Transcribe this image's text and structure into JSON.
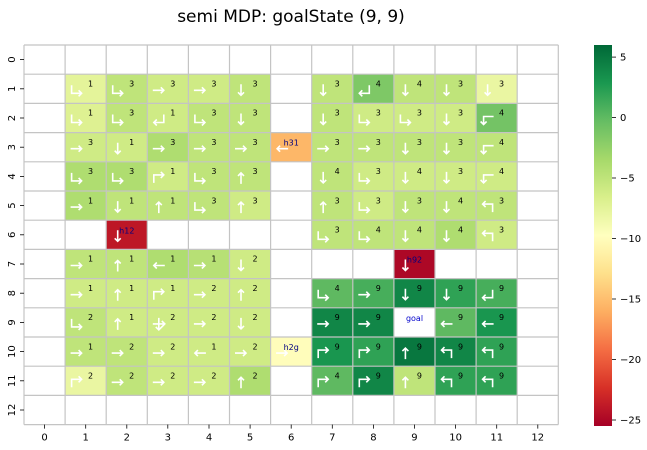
{
  "chart_data": {
    "type": "heatmap",
    "title": "semi MDP: goalState (9, 9)",
    "xlabel": "",
    "ylabel": "",
    "x_ticks": [
      "0",
      "1",
      "2",
      "3",
      "4",
      "5",
      "6",
      "7",
      "8",
      "9",
      "10",
      "11",
      "12"
    ],
    "y_ticks": [
      "0",
      "1",
      "2",
      "3",
      "4",
      "5",
      "6",
      "7",
      "8",
      "9",
      "10",
      "11",
      "12"
    ],
    "colorscale": "RdYlGn",
    "vmin": -25.5,
    "vmax": 6,
    "colorbar_ticks": [
      5,
      0,
      -5,
      -10,
      -15,
      -20,
      -25
    ],
    "cells": [
      {
        "row": 1,
        "col": 1,
        "value": -7.5,
        "label": "1",
        "arrow": "down-right"
      },
      {
        "row": 1,
        "col": 2,
        "value": -5,
        "label": "3",
        "arrow": "down-right"
      },
      {
        "row": 1,
        "col": 3,
        "value": -6,
        "label": "3",
        "arrow": "right"
      },
      {
        "row": 1,
        "col": 4,
        "value": -6,
        "label": "3",
        "arrow": "right"
      },
      {
        "row": 1,
        "col": 5,
        "value": -5,
        "label": "3",
        "arrow": "down"
      },
      {
        "row": 1,
        "col": 7,
        "value": -5,
        "label": "3",
        "arrow": "down"
      },
      {
        "row": 1,
        "col": 8,
        "value": -1.5,
        "label": "4",
        "arrow": "down-left"
      },
      {
        "row": 1,
        "col": 9,
        "value": -5,
        "label": "4",
        "arrow": "down"
      },
      {
        "row": 1,
        "col": 10,
        "value": -5,
        "label": "3",
        "arrow": "down"
      },
      {
        "row": 1,
        "col": 11,
        "value": -8,
        "label": "3",
        "arrow": "down"
      },
      {
        "row": 2,
        "col": 1,
        "value": -7,
        "label": "1",
        "arrow": "down-right"
      },
      {
        "row": 2,
        "col": 2,
        "value": -5,
        "label": "3",
        "arrow": "down-right"
      },
      {
        "row": 2,
        "col": 3,
        "value": -6,
        "label": "1",
        "arrow": "down-left"
      },
      {
        "row": 2,
        "col": 4,
        "value": -5,
        "label": "3",
        "arrow": "down-right"
      },
      {
        "row": 2,
        "col": 5,
        "value": -5,
        "label": "3",
        "arrow": "down"
      },
      {
        "row": 2,
        "col": 7,
        "value": -5,
        "label": "3",
        "arrow": "down"
      },
      {
        "row": 2,
        "col": 8,
        "value": -6,
        "label": "3",
        "arrow": "down-right"
      },
      {
        "row": 2,
        "col": 9,
        "value": -6,
        "label": "3",
        "arrow": "down-right"
      },
      {
        "row": 2,
        "col": 10,
        "value": -6,
        "label": "3",
        "arrow": "down"
      },
      {
        "row": 2,
        "col": 11,
        "value": -1,
        "label": "4",
        "arrow": "left-down"
      },
      {
        "row": 3,
        "col": 1,
        "value": -6,
        "label": "3",
        "arrow": "right"
      },
      {
        "row": 3,
        "col": 2,
        "value": -6,
        "label": "1",
        "arrow": "down"
      },
      {
        "row": 3,
        "col": 3,
        "value": -4,
        "label": "3",
        "arrow": "right"
      },
      {
        "row": 3,
        "col": 4,
        "value": -5,
        "label": "3",
        "arrow": "right"
      },
      {
        "row": 3,
        "col": 5,
        "value": -5,
        "label": "3",
        "arrow": "right"
      },
      {
        "row": 3,
        "col": 6,
        "value": -15.5,
        "label": "h31",
        "arrow": "left",
        "text_color": "#000080"
      },
      {
        "row": 3,
        "col": 7,
        "value": -5,
        "label": "3",
        "arrow": "right"
      },
      {
        "row": 3,
        "col": 8,
        "value": -5,
        "label": "3",
        "arrow": "right"
      },
      {
        "row": 3,
        "col": 9,
        "value": -5,
        "label": "3",
        "arrow": "down"
      },
      {
        "row": 3,
        "col": 10,
        "value": -5,
        "label": "3",
        "arrow": "down"
      },
      {
        "row": 3,
        "col": 11,
        "value": -5,
        "label": "4",
        "arrow": "left-down"
      },
      {
        "row": 4,
        "col": 1,
        "value": -4,
        "label": "3",
        "arrow": "down-right"
      },
      {
        "row": 4,
        "col": 2,
        "value": -4,
        "label": "3",
        "arrow": "down-right"
      },
      {
        "row": 4,
        "col": 3,
        "value": -6,
        "label": "1",
        "arrow": "up-right"
      },
      {
        "row": 4,
        "col": 4,
        "value": -5,
        "label": "3",
        "arrow": "down-right"
      },
      {
        "row": 4,
        "col": 5,
        "value": -5,
        "label": "3",
        "arrow": "up"
      },
      {
        "row": 4,
        "col": 7,
        "value": -5,
        "label": "4",
        "arrow": "down"
      },
      {
        "row": 4,
        "col": 8,
        "value": -6,
        "label": "3",
        "arrow": "down-right"
      },
      {
        "row": 4,
        "col": 9,
        "value": -6,
        "label": "4",
        "arrow": "down"
      },
      {
        "row": 4,
        "col": 10,
        "value": -6,
        "label": "3",
        "arrow": "down"
      },
      {
        "row": 4,
        "col": 11,
        "value": -6,
        "label": "4",
        "arrow": "left-down"
      },
      {
        "row": 5,
        "col": 1,
        "value": -4,
        "label": "1",
        "arrow": "right"
      },
      {
        "row": 5,
        "col": 2,
        "value": -5,
        "label": "1",
        "arrow": "down"
      },
      {
        "row": 5,
        "col": 3,
        "value": -5,
        "label": "1",
        "arrow": "up"
      },
      {
        "row": 5,
        "col": 4,
        "value": -5,
        "label": "3",
        "arrow": "down-right"
      },
      {
        "row": 5,
        "col": 5,
        "value": -6,
        "label": "3",
        "arrow": "up"
      },
      {
        "row": 5,
        "col": 7,
        "value": -5,
        "label": "3",
        "arrow": "up"
      },
      {
        "row": 5,
        "col": 8,
        "value": -6,
        "label": "3",
        "arrow": "down-right"
      },
      {
        "row": 5,
        "col": 9,
        "value": -5,
        "label": "3",
        "arrow": "down"
      },
      {
        "row": 5,
        "col": 10,
        "value": -5,
        "label": "4",
        "arrow": "down"
      },
      {
        "row": 5,
        "col": 11,
        "value": -5,
        "label": "3",
        "arrow": "up-left"
      },
      {
        "row": 6,
        "col": 2,
        "value": -24,
        "label": "h12",
        "arrow": "down",
        "text_color": "#000080"
      },
      {
        "row": 6,
        "col": 7,
        "value": -5,
        "label": "3",
        "arrow": "down-right"
      },
      {
        "row": 6,
        "col": 8,
        "value": -5,
        "label": "4",
        "arrow": "down-right"
      },
      {
        "row": 6,
        "col": 9,
        "value": -5,
        "label": "4",
        "arrow": "down"
      },
      {
        "row": 6,
        "col": 10,
        "value": -4,
        "label": "4",
        "arrow": "down"
      },
      {
        "row": 6,
        "col": 11,
        "value": -6,
        "label": "3",
        "arrow": "up-left"
      },
      {
        "row": 7,
        "col": 1,
        "value": -5,
        "label": "1",
        "arrow": "right"
      },
      {
        "row": 7,
        "col": 2,
        "value": -5,
        "label": "1",
        "arrow": "up"
      },
      {
        "row": 7,
        "col": 3,
        "value": -4,
        "label": "1",
        "arrow": "left"
      },
      {
        "row": 7,
        "col": 4,
        "value": -4.5,
        "label": "1",
        "arrow": "right"
      },
      {
        "row": 7,
        "col": 5,
        "value": -6,
        "label": "2",
        "arrow": "down"
      },
      {
        "row": 7,
        "col": 9,
        "value": -25,
        "label": "h92",
        "arrow": "down",
        "text_color": "#000080"
      },
      {
        "row": 8,
        "col": 1,
        "value": -6,
        "label": "1",
        "arrow": "right"
      },
      {
        "row": 8,
        "col": 2,
        "value": -6,
        "label": "1",
        "arrow": "up"
      },
      {
        "row": 8,
        "col": 3,
        "value": -6,
        "label": "1",
        "arrow": "up-right"
      },
      {
        "row": 8,
        "col": 4,
        "value": -6,
        "label": "2",
        "arrow": "right"
      },
      {
        "row": 8,
        "col": 5,
        "value": -6,
        "label": "2",
        "arrow": "up"
      },
      {
        "row": 8,
        "col": 7,
        "value": 0,
        "label": "4",
        "arrow": "down-right"
      },
      {
        "row": 8,
        "col": 8,
        "value": 1,
        "label": "9",
        "arrow": "right"
      },
      {
        "row": 8,
        "col": 9,
        "value": 4,
        "label": "9",
        "arrow": "down"
      },
      {
        "row": 8,
        "col": 10,
        "value": 2,
        "label": "9",
        "arrow": "down"
      },
      {
        "row": 8,
        "col": 11,
        "value": 1,
        "label": "9",
        "arrow": "down-left"
      },
      {
        "row": 9,
        "col": 1,
        "value": -5,
        "label": "2",
        "arrow": "down-right"
      },
      {
        "row": 9,
        "col": 2,
        "value": -6,
        "label": "1",
        "arrow": "up"
      },
      {
        "row": 9,
        "col": 3,
        "value": -6,
        "label": "2",
        "arrow": "cross"
      },
      {
        "row": 9,
        "col": 4,
        "value": -6,
        "label": "2",
        "arrow": "right"
      },
      {
        "row": 9,
        "col": 5,
        "value": -6,
        "label": "2",
        "arrow": "down"
      },
      {
        "row": 9,
        "col": 7,
        "value": 4,
        "label": "9",
        "arrow": "right"
      },
      {
        "row": 9,
        "col": 8,
        "value": 4,
        "label": "9",
        "arrow": "right"
      },
      {
        "row": 9,
        "col": 9,
        "value": null,
        "label": "goal",
        "arrow": "none",
        "text_color": "#0000cc",
        "fill": "#ffffff"
      },
      {
        "row": 9,
        "col": 10,
        "value": 0,
        "label": "9",
        "arrow": "left"
      },
      {
        "row": 9,
        "col": 11,
        "value": 3,
        "label": "9",
        "arrow": "left"
      },
      {
        "row": 10,
        "col": 1,
        "value": -5,
        "label": "1",
        "arrow": "right"
      },
      {
        "row": 10,
        "col": 2,
        "value": -5,
        "label": "2",
        "arrow": "right"
      },
      {
        "row": 10,
        "col": 3,
        "value": -6,
        "label": "2",
        "arrow": "right"
      },
      {
        "row": 10,
        "col": 4,
        "value": -6,
        "label": "1",
        "arrow": "left"
      },
      {
        "row": 10,
        "col": 5,
        "value": -6,
        "label": "2",
        "arrow": "right"
      },
      {
        "row": 10,
        "col": 6,
        "value": -10,
        "label": "h2g",
        "arrow": "right",
        "text_color": "#000080"
      },
      {
        "row": 10,
        "col": 7,
        "value": 3,
        "label": "9",
        "arrow": "up-right"
      },
      {
        "row": 10,
        "col": 8,
        "value": 2,
        "label": "9",
        "arrow": "up-right"
      },
      {
        "row": 10,
        "col": 9,
        "value": 5,
        "label": "9",
        "arrow": "up"
      },
      {
        "row": 10,
        "col": 10,
        "value": 4,
        "label": "9",
        "arrow": "up-left"
      },
      {
        "row": 10,
        "col": 11,
        "value": 2,
        "label": "9",
        "arrow": "up-left"
      },
      {
        "row": 11,
        "col": 1,
        "value": -8,
        "label": "2",
        "arrow": "up-right"
      },
      {
        "row": 11,
        "col": 2,
        "value": -5,
        "label": "2",
        "arrow": "right"
      },
      {
        "row": 11,
        "col": 3,
        "value": -6,
        "label": "2",
        "arrow": "right"
      },
      {
        "row": 11,
        "col": 4,
        "value": -6,
        "label": "2",
        "arrow": "right"
      },
      {
        "row": 11,
        "col": 5,
        "value": -4,
        "label": "2",
        "arrow": "up"
      },
      {
        "row": 11,
        "col": 7,
        "value": 0,
        "label": "4",
        "arrow": "up-right"
      },
      {
        "row": 11,
        "col": 8,
        "value": 4,
        "label": "9",
        "arrow": "up-right"
      },
      {
        "row": 11,
        "col": 9,
        "value": -5,
        "label": "9",
        "arrow": "up"
      },
      {
        "row": 11,
        "col": 10,
        "value": 2,
        "label": "9",
        "arrow": "up-left"
      },
      {
        "row": 11,
        "col": 11,
        "value": 2,
        "label": "9",
        "arrow": "up-left"
      }
    ]
  }
}
